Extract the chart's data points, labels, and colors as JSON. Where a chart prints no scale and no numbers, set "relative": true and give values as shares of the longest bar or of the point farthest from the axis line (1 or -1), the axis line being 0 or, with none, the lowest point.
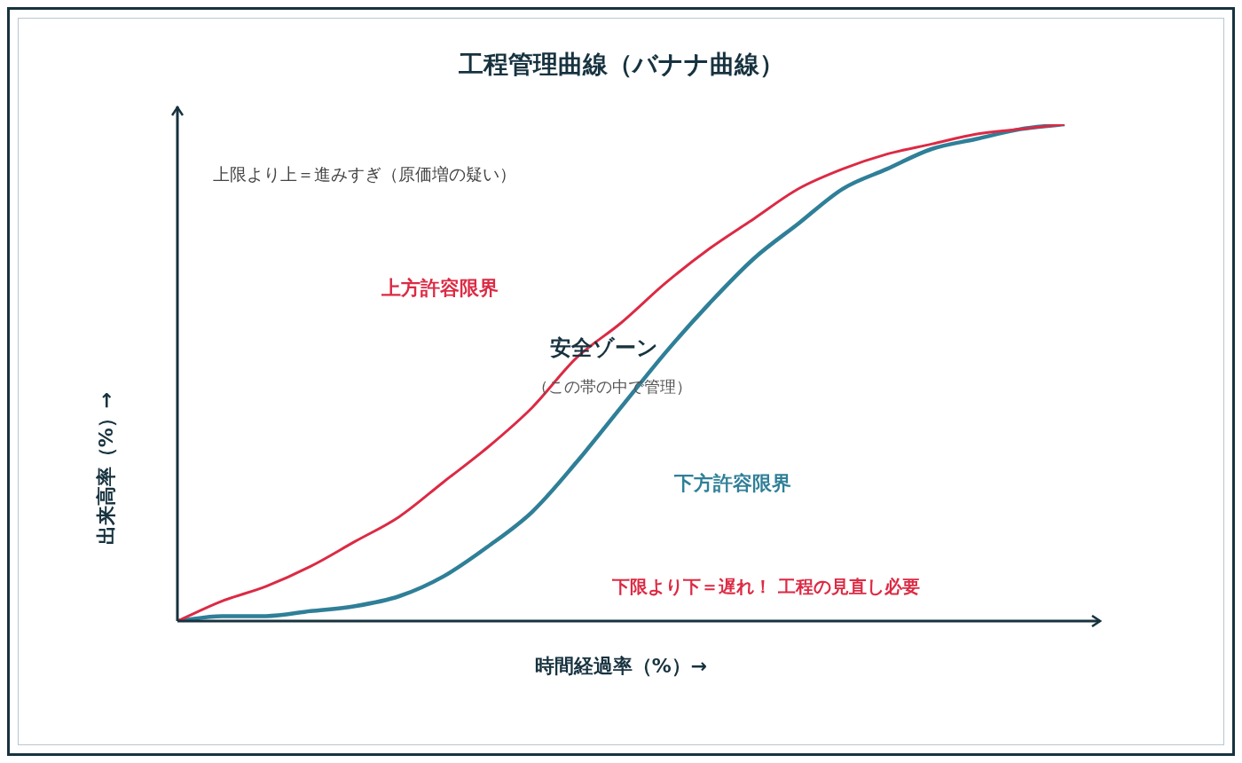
{
  "chart_data": {
    "type": "line",
    "title": "工程管理曲線（バナナ曲線）",
    "xlabel": "時間経過率（%）→",
    "ylabel": "出来高率（%）→",
    "relative": true,
    "legend": false,
    "grid": false,
    "categories": [
      null,
      null,
      null,
      null,
      null,
      null,
      null,
      null,
      null,
      null,
      null,
      null,
      null,
      null,
      null,
      null,
      null,
      null,
      null,
      null,
      null
    ],
    "series": [
      {
        "name": "上方許容限界",
        "color": "#dc2a44",
        "values": [
          0,
          0.04,
          0.07,
          0.11,
          0.16,
          0.21,
          0.28,
          0.35,
          0.43,
          0.53,
          0.6,
          0.68,
          0.75,
          0.81,
          0.87,
          0.91,
          0.94,
          0.96,
          0.98,
          0.99,
          1
        ]
      },
      {
        "name": "下方許容限界",
        "color": "#2f7f98",
        "values": [
          0,
          0.01,
          0.01,
          0.02,
          0.03,
          0.05,
          0.09,
          0.15,
          0.22,
          0.32,
          0.43,
          0.54,
          0.64,
          0.73,
          0.8,
          0.87,
          0.91,
          0.95,
          0.97,
          0.99,
          1
        ]
      }
    ],
    "annotations": [
      "上限より上＝進みすぎ（原価増の疑い）",
      "安全ゾーン",
      "（この帯の中で管理）",
      "下限より下＝遅れ！ 工程の見直し必要"
    ]
  }
}
